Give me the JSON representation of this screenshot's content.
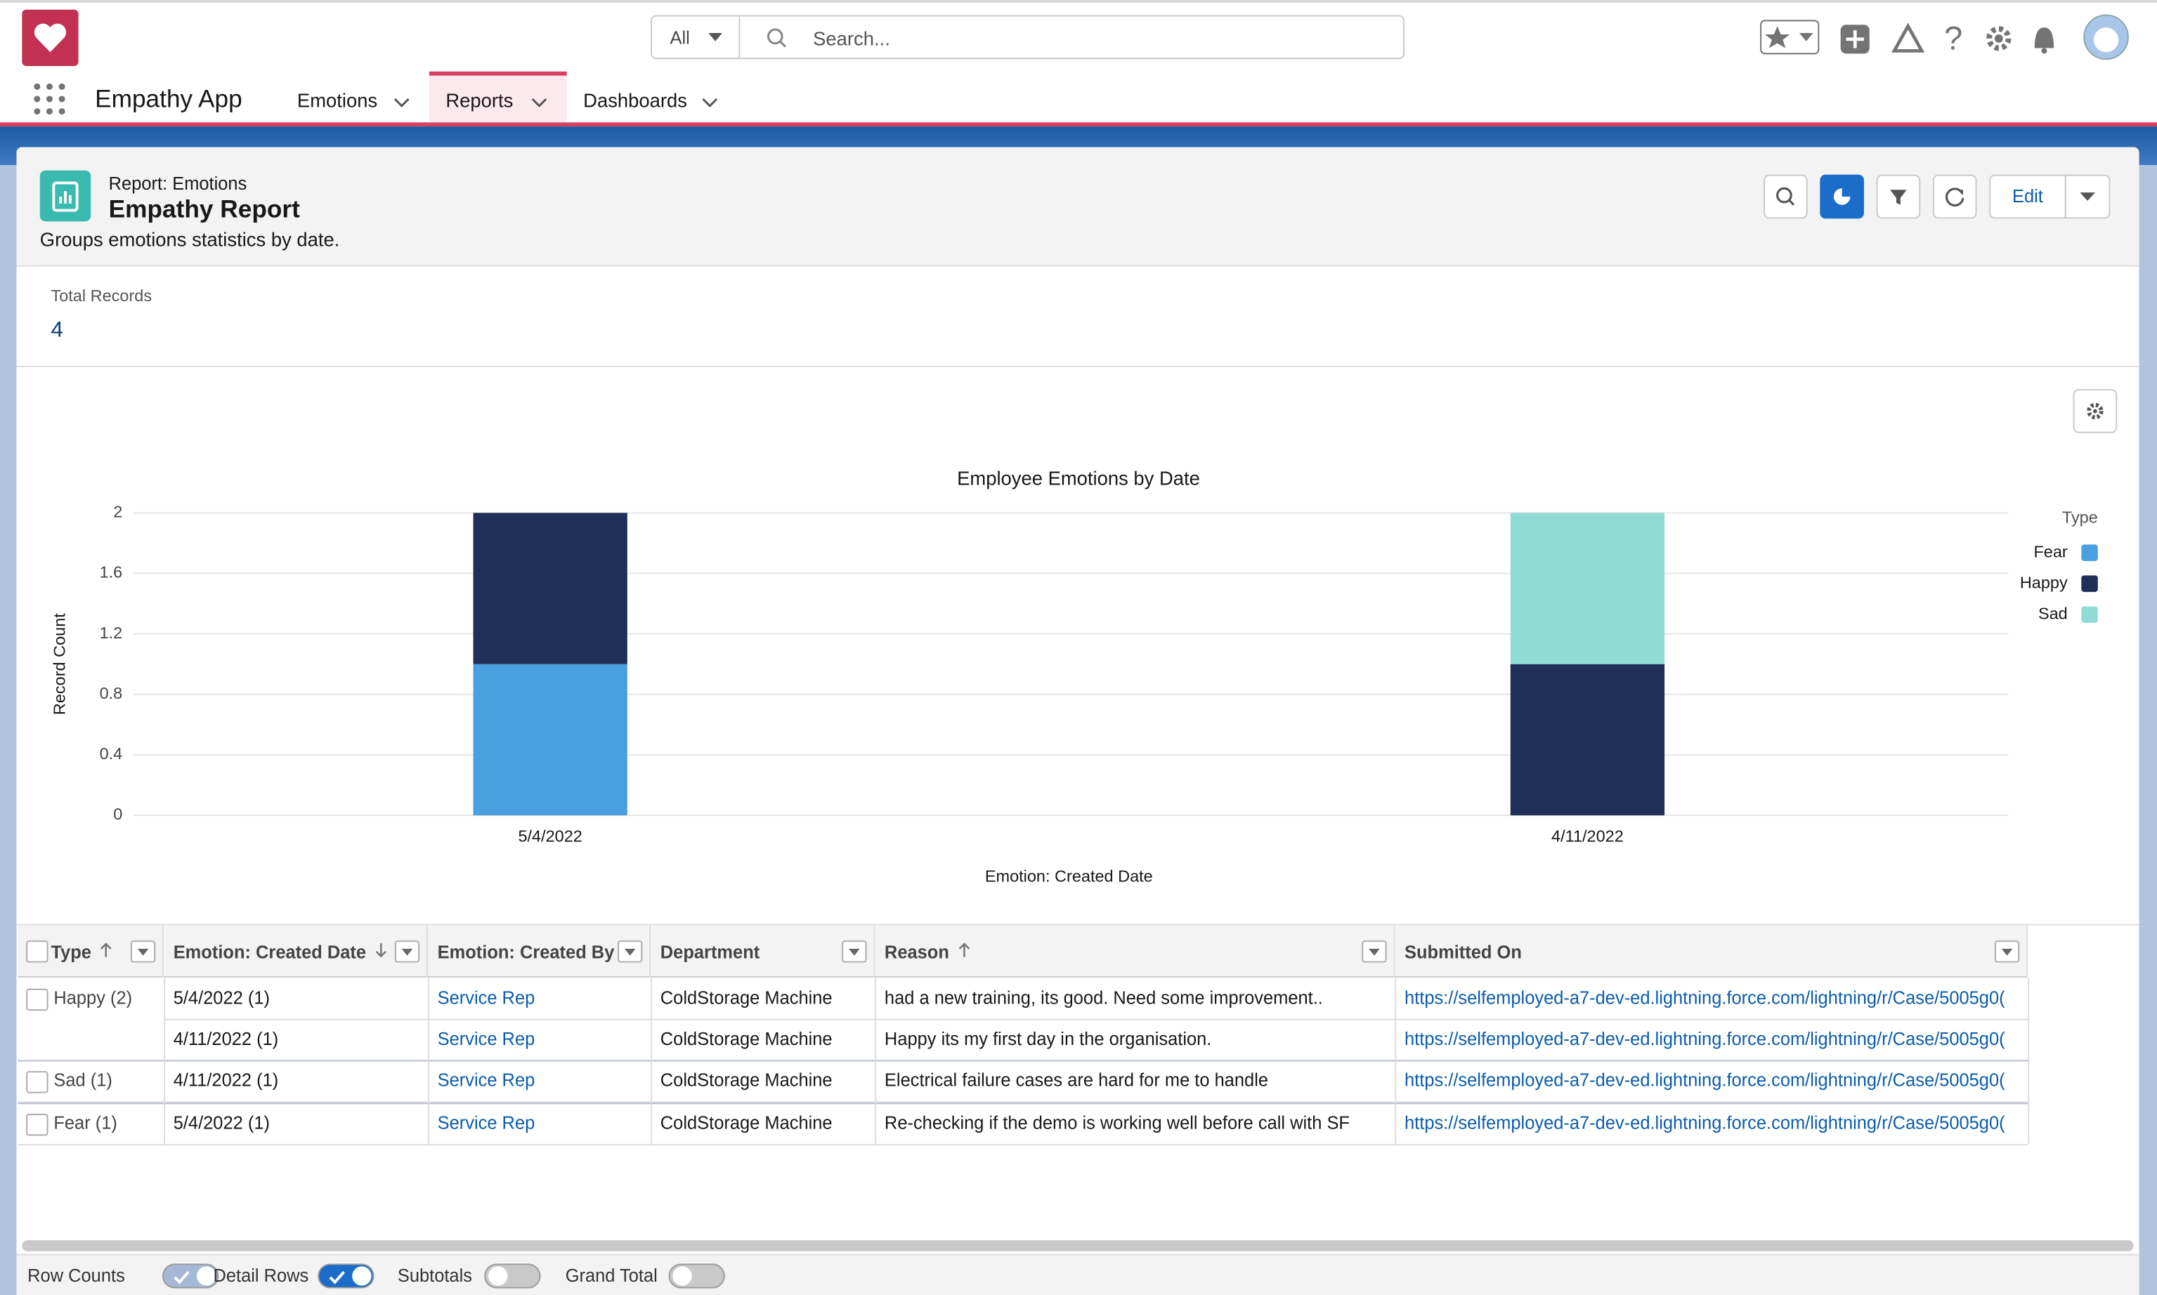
{
  "app": {
    "name": "Empathy App",
    "search_scope": "All",
    "search_placeholder": "Search...",
    "tabs": [
      "Emotions",
      "Reports",
      "Dashboards"
    ],
    "active_tab": 1
  },
  "report": {
    "type_label": "Report: Emotions",
    "title": "Empathy Report",
    "description": "Groups emotions statistics by date.",
    "edit": "Edit",
    "total_records_label": "Total Records",
    "total_records": 4
  },
  "chart_data": {
    "type": "stacked_bar",
    "title": "Employee Emotions by Date",
    "x_label": "Emotion: Created Date",
    "y_label": "Record Count",
    "legend_title": "Type",
    "legend": "right",
    "grid": true,
    "categories": [
      "5/4/2022",
      "4/11/2022"
    ],
    "series": [
      {
        "name": "Fear",
        "color": "#4a9fdf",
        "values": [
          1,
          0
        ]
      },
      {
        "name": "Happy",
        "color": "#1f2f57",
        "values": [
          1,
          1
        ]
      },
      {
        "name": "Sad",
        "color": "#90dcd5",
        "values": [
          0,
          1
        ]
      }
    ],
    "ylim": [
      0,
      2
    ],
    "yticks": [
      0,
      0.4,
      0.8,
      1.2,
      1.6,
      2
    ]
  },
  "table": {
    "columns": [
      {
        "name": "Type",
        "sort": "asc"
      },
      {
        "name": "Emotion: Created Date",
        "sort": "desc"
      },
      {
        "name": "Emotion: Created By",
        "sort": null
      },
      {
        "name": "Department",
        "sort": null
      },
      {
        "name": "Reason",
        "sort": "asc"
      },
      {
        "name": "Submitted On",
        "sort": null
      }
    ],
    "rows": [
      [
        "Happy (2)",
        "5/4/2022 (1)",
        "Service Rep",
        "ColdStorage Machine",
        "had a new training, its good. Need some improvement..",
        "https://selfemployed-a7-dev-ed.lightning.force.com/lightning/r/Case/5005g0("
      ],
      [
        null,
        "4/11/2022 (1)",
        "Service Rep",
        "ColdStorage Machine",
        "Happy its my first day in the organisation.",
        "https://selfemployed-a7-dev-ed.lightning.force.com/lightning/r/Case/5005g0("
      ],
      [
        "Sad (1)",
        "4/11/2022 (1)",
        "Service Rep",
        "ColdStorage Machine",
        "Electrical failure cases are hard for me to handle",
        "https://selfemployed-a7-dev-ed.lightning.force.com/lightning/r/Case/5005g0("
      ],
      [
        "Fear (1)",
        "5/4/2022 (1)",
        "Service Rep",
        "ColdStorage Machine",
        "Re-checking if the demo is working well before call with SF",
        "https://selfemployed-a7-dev-ed.lightning.force.com/lightning/r/Case/5005g0("
      ]
    ]
  },
  "footer": {
    "toggles": [
      {
        "label": "Row Counts",
        "on": true,
        "disabled": true
      },
      {
        "label": "Detail Rows",
        "on": true,
        "disabled": false
      },
      {
        "label": "Subtotals",
        "on": false,
        "disabled": false
      },
      {
        "label": "Grand Total",
        "on": false,
        "disabled": false
      }
    ]
  }
}
